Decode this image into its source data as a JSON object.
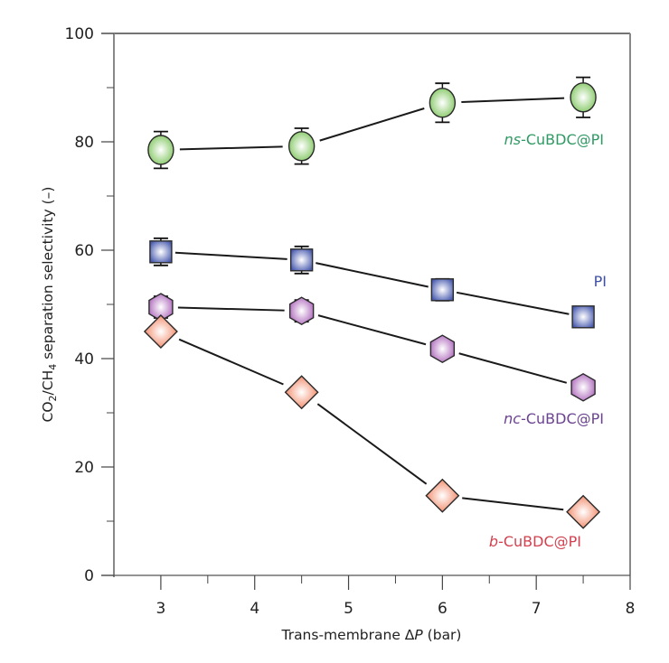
{
  "chart_data": {
    "type": "scatter",
    "title": "",
    "xlabel": "Trans-membrane ΔP (bar)",
    "xlabel_parts": {
      "pre": "Trans-membrane Δ",
      "italic": "P",
      "post": " (bar)"
    },
    "ylabel": "CO2/CH4 separation selectivity (–)",
    "ylabel_parts": {
      "a": "CO",
      "a_sub": "2",
      "b": "/CH",
      "b_sub": "4",
      "c": " separation selectivity (–)"
    },
    "xlim": [
      2.5,
      8
    ],
    "ylim": [
      0,
      100
    ],
    "xticks": [
      3,
      4,
      5,
      6,
      7,
      8
    ],
    "xminor": [
      3.5,
      4.5,
      5.5,
      6.5,
      7.5
    ],
    "yticks": [
      0,
      20,
      40,
      60,
      80,
      100
    ],
    "yminor": [
      10,
      30,
      50,
      70,
      90
    ],
    "grid": false,
    "legend": "inline labels next to series",
    "series": [
      {
        "name": "ns-CuBDC@PI",
        "label_italic": "ns",
        "label_rest": "-CuBDC@PI",
        "marker": "circle",
        "color": "#7cc45a",
        "label_color": "#2f9a63",
        "x": [
          3,
          4.5,
          6,
          7.5
        ],
        "y": [
          78.5,
          79.2,
          87.2,
          88.2
        ],
        "yerr": [
          3.4,
          3.3,
          3.6,
          3.7
        ]
      },
      {
        "name": "PI",
        "label_italic": "",
        "label_rest": "PI",
        "marker": "square",
        "color": "#4a5cb0",
        "label_color": "#3f50a3",
        "x": [
          3,
          4.5,
          6,
          7.5
        ],
        "y": [
          59.7,
          58.2,
          52.7,
          47.7
        ],
        "yerr": [
          2.5,
          2.5,
          2.0,
          0
        ]
      },
      {
        "name": "nc-CuBDC@PI",
        "label_italic": "nc",
        "label_rest": "-CuBDC@PI",
        "marker": "hexagon",
        "color": "#a960b8",
        "label_color": "#6b4390",
        "x": [
          3,
          4.5,
          6,
          7.5
        ],
        "y": [
          49.5,
          48.8,
          41.8,
          34.7
        ],
        "yerr": [
          2.0,
          2.0,
          0,
          0
        ]
      },
      {
        "name": "b-CuBDC@PI",
        "label_italic": "b",
        "label_rest": "-CuBDC@PI",
        "marker": "diamond",
        "color": "#f07a55",
        "label_color": "#d2414f",
        "x": [
          3,
          4.5,
          6,
          7.5
        ],
        "y": [
          45.0,
          33.8,
          14.7,
          11.7
        ],
        "yerr": [
          0,
          0,
          0,
          0
        ]
      }
    ]
  }
}
